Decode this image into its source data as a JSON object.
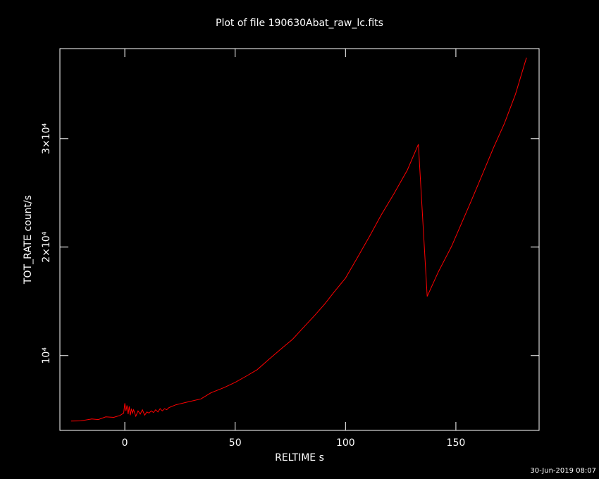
{
  "chart_data": {
    "type": "line",
    "title": "Plot of file 190630Abat_raw_lc.fits",
    "x_label": "RELTIME  s",
    "y_label": "TOT_RATE  count/s",
    "timestamp": "30-Jun-2019 08:07",
    "xlim": [
      -29.4,
      187.7
    ],
    "ylim": [
      3100,
      38300
    ],
    "xticks": [
      0,
      50,
      100,
      150
    ],
    "yticks": [
      {
        "value": 10000,
        "label": "10⁴"
      },
      {
        "value": 20000,
        "label": "2×10⁴"
      },
      {
        "value": 30000,
        "label": "3×10⁴"
      }
    ],
    "series": [
      {
        "name": "TOT_RATE",
        "color": "#ff0000",
        "x": [
          -24.3,
          -20,
          -15,
          -12,
          -8.6,
          -5,
          -2.2,
          -0.5,
          0,
          0.5,
          1,
          1.5,
          2,
          2.5,
          3,
          3.5,
          4,
          5,
          6,
          7,
          8,
          9,
          10,
          11,
          12,
          13,
          14,
          15,
          16,
          17,
          18,
          19,
          20,
          23,
          28,
          34.5,
          39,
          45,
          50,
          55,
          60,
          65,
          71,
          76,
          81,
          86,
          90.5,
          95,
          100,
          105,
          111,
          116,
          122,
          128,
          133,
          137,
          142,
          148,
          153,
          157,
          162,
          167,
          172,
          177,
          182
        ],
        "values": [
          3960,
          3980,
          4150,
          4100,
          4350,
          4300,
          4480,
          4700,
          5600,
          4900,
          5400,
          4600,
          5300,
          4500,
          5100,
          4700,
          5000,
          4400,
          4900,
          4600,
          5000,
          4500,
          4800,
          4700,
          4900,
          4750,
          5000,
          4800,
          5100,
          4900,
          5100,
          5000,
          5200,
          5450,
          5700,
          6000,
          6560,
          7050,
          7530,
          8100,
          8700,
          9600,
          10650,
          11500,
          12600,
          13700,
          14740,
          15900,
          17140,
          18900,
          21040,
          22900,
          24940,
          27100,
          29480,
          15450,
          17700,
          20060,
          22400,
          24280,
          26700,
          29150,
          31400,
          34100,
          37470
        ]
      }
    ]
  }
}
